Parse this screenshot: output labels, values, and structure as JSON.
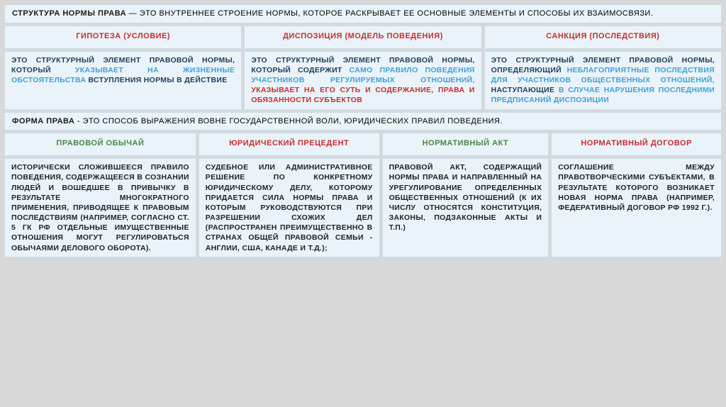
{
  "header": {
    "bold": "СТРУКТУРА НОРМЫ ПРАВА",
    "rest": " — ЭТО ВНУТРЕННЕЕ СТРОЕНИЕ НОРМЫ, КОТОРОЕ РАСКРЫВАЕТ ЕЕ ОСНОВНЫЕ ЭЛЕМЕНТЫ И СПОСОБЫ ИХ ВЗАИМОСВЯЗИ."
  },
  "top": [
    {
      "title": "ГИПОТЕЗА (УСЛОВИЕ)",
      "title_color": "red",
      "body_parts": [
        {
          "cls": "navy",
          "t": "ЭТО СТРУКТУРНЫЙ ЭЛЕМЕНТ ПРАВОВОЙ НОРМЫ, КОТОРЫЙ "
        },
        {
          "cls": "hl1",
          "t": "УКАЗЫВАЕТ НА ЖИЗНЕННЫЕ ОБСТОЯТЕЛЬСТВА"
        },
        {
          "cls": "navy",
          "t": " ВСТУПЛЕНИЯ НОРМЫ В ДЕЙСТВИЕ"
        }
      ]
    },
    {
      "title": "ДИСПОЗИЦИЯ (МОДЕЛЬ ПОВЕДЕНИЯ)",
      "title_color": "red",
      "body_parts": [
        {
          "cls": "navy",
          "t": "ЭТО СТРУКТУРНЫЙ ЭЛЕМЕНТ ПРАВОВОЙ НОРМЫ, КОТОРЫЙ СОДЕРЖИТ "
        },
        {
          "cls": "hl1",
          "t": "САМО ПРАВИЛО ПОВЕДЕНИЯ УЧАСТНИКОВ РЕГУЛИРУЕМЫХ ОТНОШЕНИЙ,"
        },
        {
          "cls": "hl2",
          "t": " УКАЗЫВАЕТ НА ЕГО СУТЬ И СОДЕРЖАНИЕ, ПРАВА И ОБЯЗАННОСТИ СУБЪЕКТОВ"
        }
      ]
    },
    {
      "title": "САНКЦИЯ (ПОСЛЕДСТВИЯ)",
      "title_color": "red",
      "body_parts": [
        {
          "cls": "navy",
          "t": "ЭТО СТРУКТУРНЫЙ ЭЛЕМЕНТ ПРАВОВОЙ НОРМЫ, ОПРЕДЕЛЯЮЩИЙ "
        },
        {
          "cls": "hl1",
          "t": "НЕБЛАГОПРИЯТНЫЕ ПОСЛЕДСТВИЯ ДЛЯ УЧАСТНИКОВ ОБЩЕСТВЕННЫХ ОТНОШЕНИЙ,"
        },
        {
          "cls": "navy",
          "t": " НАСТУПАЮЩИЕ "
        },
        {
          "cls": "hl1",
          "t": "В СЛУЧАЕ НАРУШЕНИЯ ПОСЛЕДНИМИ ПРЕДПИСАНИЙ ДИСПОЗИЦИИ"
        }
      ]
    }
  ],
  "middle": {
    "bold": "ФОРМА ПРАВА",
    "rest": " - ЭТО СПОСОБ ВЫРАЖЕНИЯ ВОВНЕ ГОСУДАРСТВЕННОЙ ВОЛИ, ЮРИДИЧЕСКИХ ПРАВИЛ ПОВЕДЕНИЯ."
  },
  "bottom": [
    {
      "title": "ПРАВОВОЙ ОБЫЧАЙ",
      "title_color": "green",
      "body": "ИСТОРИЧЕСКИ СЛОЖИВШЕЕСЯ ПРАВИЛО ПОВЕДЕНИЯ, СОДЕРЖАЩЕЕСЯ В СОЗНАНИИ ЛЮДЕЙ И ВОШЕДШЕЕ В ПРИВЫЧКУ В РЕЗУЛЬТАТЕ МНОГОКРАТНОГО ПРИМЕНЕНИЯ, ПРИВОДЯЩЕЕ К ПРАВОВЫМ ПОСЛЕДСТВИЯМ (НАПРИМЕР, СОГЛАСНО СТ. 5 ГК РФ ОТДЕЛЬНЫЕ ИМУЩЕСТВЕННЫЕ ОТНОШЕНИЯ МОГУТ РЕГУЛИРОВАТЬСЯ ОБЫЧАЯМИ ДЕЛОВОГО ОБОРОТА)."
    },
    {
      "title": "ЮРИДИЧЕСКИЙ ПРЕЦЕДЕНТ",
      "title_color": "red",
      "body": "СУДЕБНОЕ ИЛИ АДМИНИСТРАТИВНОЕ РЕШЕНИЕ ПО КОНКРЕТНОМУ ЮРИДИЧЕСКОМУ ДЕЛУ, КОТОРОМУ ПРИДАЕТСЯ СИЛА НОРМЫ ПРАВА И КОТОРЫМ РУКОВОДСТВУЮТСЯ ПРИ РАЗРЕШЕНИИ СХОЖИХ ДЕЛ (РАСПРОСТРАНЕН ПРЕИМУЩЕСТВЕННО В СТРАНАХ ОБЩЕЙ ПРАВОВОЙ СЕМЬИ - АНГЛИИ, США, КАНАДЕ И Т.Д.);"
    },
    {
      "title": "НОРМАТИВНЫЙ АКТ",
      "title_color": "green",
      "body": "ПРАВОВОЙ АКТ, СОДЕРЖАЩИЙ НОРМЫ ПРАВА И НАПРАВЛЕННЫЙ НА УРЕГУЛИРОВАНИЕ ОПРЕДЕЛЕННЫХ ОБЩЕСТВЕННЫХ ОТНОШЕНИЙ (К ИХ ЧИСЛУ ОТНОСЯТСЯ КОНСТИТУЦИЯ, ЗАКОНЫ, ПОДЗАКОННЫЕ АКТЫ И Т.П.)"
    },
    {
      "title": "НОРМАТИВНЫЙ ДОГОВОР",
      "title_color": "red",
      "body": "СОГЛАШЕНИЕ МЕЖДУ ПРАВОТВОРЧЕСКИМИ СУБЪЕКТАМИ, В РЕЗУЛЬТАТЕ КОТОРОГО ВОЗНИКАЕТ НОВАЯ НОРМА ПРАВА (НАПРИМЕР, ФЕДЕРАТИВНЫЙ ДОГОВОР РФ 1992 Г.)."
    }
  ],
  "colors": {
    "bg": "#d8d8d8",
    "card_bg": "#eaf3f9",
    "card_border": "#c9dde9",
    "red": "#c62f2f",
    "green": "#468a3e",
    "blue_hl": "#3fa0d9",
    "navy": "#14365f"
  }
}
